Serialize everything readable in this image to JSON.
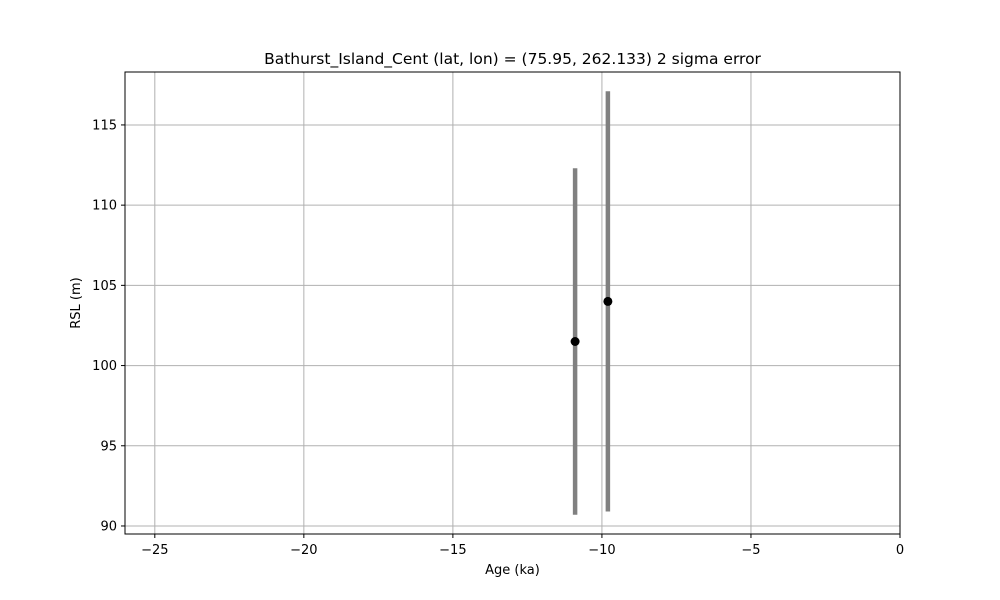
{
  "chart_data": {
    "type": "scatter",
    "title": "Bathurst_Island_Cent (lat, lon) = (75.95, 262.133)  2 sigma error",
    "xlabel": "Age (ka)",
    "ylabel": "RSL (m)",
    "xlim": [
      -26,
      0
    ],
    "ylim": [
      89.5,
      118.3
    ],
    "xticks": [
      -25,
      -20,
      -15,
      -10,
      -5,
      0
    ],
    "xtick_labels": [
      "−25",
      "−20",
      "−15",
      "−10",
      "−5",
      "0"
    ],
    "yticks": [
      90,
      95,
      100,
      105,
      110,
      115
    ],
    "ytick_labels": [
      "90",
      "95",
      "100",
      "105",
      "110",
      "115"
    ],
    "grid": true,
    "marker_color": "#000000",
    "errorbar_color": "#808080",
    "points": [
      {
        "x": -10.9,
        "y": 101.5,
        "y_low": 90.7,
        "y_high": 112.3
      },
      {
        "x": -9.8,
        "y": 104.0,
        "y_low": 90.9,
        "y_high": 117.1
      }
    ]
  }
}
